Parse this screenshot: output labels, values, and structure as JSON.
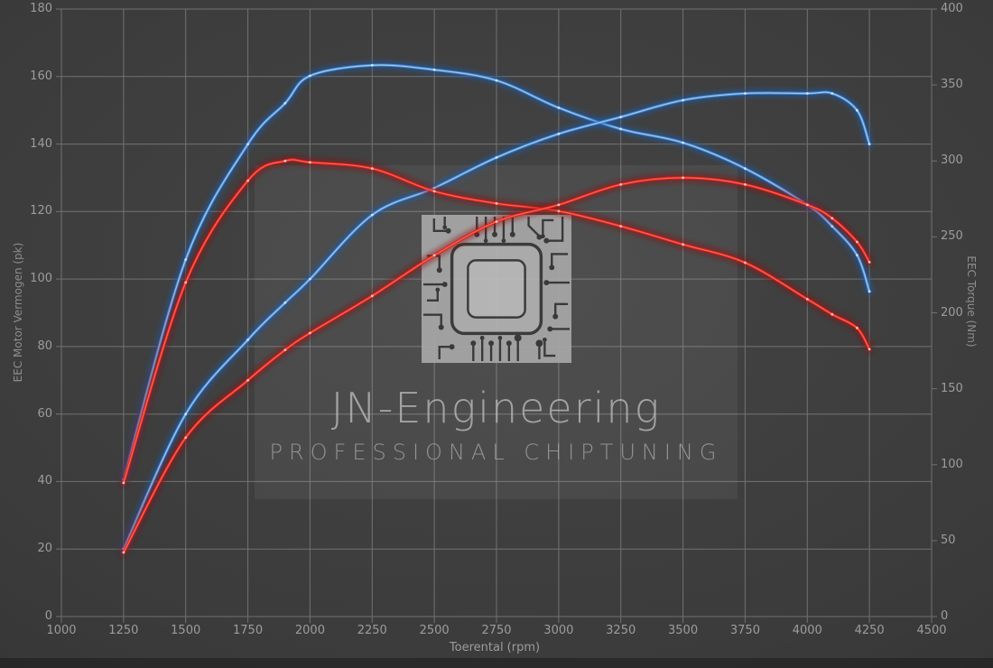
{
  "watermark": {
    "title": "JN-Engineering",
    "subtitle": "PROFESSIONAL CHIPTUNING",
    "icon": "chip-icon"
  },
  "colors": {
    "background_center": "#454545",
    "background_edge": "#2c2c2c",
    "grid": "#a6a6a6",
    "tick_text": "#9c9c9c",
    "axis_title_text": "#8d8d8d",
    "watermark_panel": "rgba(255,255,255,0.055)",
    "watermark_text": "#b4b4b4",
    "blue": {
      "main": "#3f86d4",
      "glow": "#1d5cab",
      "mid": "#3f86d4",
      "core": "#a9cdf2",
      "dot": "#dcebfa"
    },
    "red": {
      "main": "#e32020",
      "glow": "#931111",
      "mid": "#e32020",
      "core": "#ff6a52",
      "dot": "#ffd9d0"
    }
  },
  "chart_data": {
    "type": "line",
    "title": "",
    "xlabel": "Toerental (rpm)",
    "ylabel_left": "EEC Motor Vermogen (pk)",
    "ylabel_right": "EEC Torque (Nm)",
    "grid": true,
    "x_range": [
      1000,
      4500
    ],
    "x_tick_step": 250,
    "left_range": [
      0,
      180
    ],
    "left_tick_step": 20,
    "right_range": [
      0,
      400
    ],
    "right_tick_step": 50,
    "x": [
      1250,
      1500,
      1750,
      1900,
      2000,
      2250,
      2500,
      2750,
      3000,
      3250,
      3500,
      3750,
      4000,
      4100,
      4200,
      4250
    ],
    "series": [
      {
        "name": "torque-blue",
        "axis": "right",
        "unit": "Nm",
        "palette": "blue",
        "values": [
          90,
          235,
          311,
          338,
          356,
          363,
          360,
          353,
          335,
          321,
          312,
          295,
          271,
          257,
          238,
          214
        ]
      },
      {
        "name": "power-blue",
        "axis": "left",
        "unit": "pk",
        "palette": "blue",
        "values": [
          20,
          60,
          82,
          93,
          100,
          119,
          127,
          136,
          143,
          148,
          153,
          155,
          155,
          155,
          150,
          140
        ]
      },
      {
        "name": "torque-red",
        "axis": "right",
        "unit": "Nm",
        "palette": "red",
        "values": [
          88,
          220,
          287,
          300,
          299,
          295,
          280,
          272,
          267,
          257,
          245,
          233,
          209,
          199,
          190,
          176
        ]
      },
      {
        "name": "power-red",
        "axis": "left",
        "unit": "pk",
        "palette": "red",
        "values": [
          19,
          53,
          70,
          79,
          84,
          95,
          107,
          117,
          122,
          128,
          130,
          128,
          122,
          118,
          111,
          105
        ]
      }
    ]
  }
}
